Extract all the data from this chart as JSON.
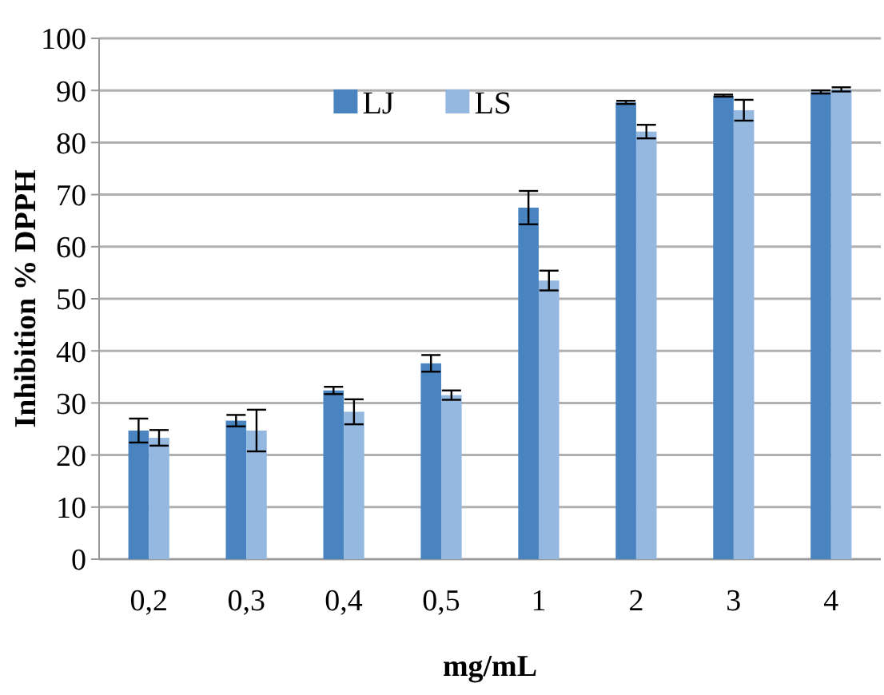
{
  "chart_data": {
    "type": "bar",
    "xlabel": "mg/mL",
    "ylabel": "Inhibition % DPPH",
    "categories": [
      "0,2",
      "0,3",
      "0,4",
      "0,5",
      "1",
      "2",
      "3",
      "4"
    ],
    "series": [
      {
        "name": "LJ",
        "color": "#4a84c0",
        "values": [
          24.7,
          26.6,
          32.4,
          37.6,
          67.5,
          87.7,
          89.0,
          89.7
        ],
        "errors": [
          2.3,
          1.1,
          0.7,
          1.6,
          3.2,
          0.3,
          0.2,
          0.3
        ]
      },
      {
        "name": "LS",
        "color": "#94b8e0",
        "values": [
          23.3,
          24.7,
          28.3,
          31.5,
          53.5,
          82.1,
          86.2,
          90.2
        ],
        "errors": [
          1.5,
          4,
          2.4,
          0.9,
          1.9,
          1.3,
          2,
          0.4
        ]
      }
    ],
    "ylim": [
      0,
      100
    ],
    "yticks": [
      0,
      10,
      20,
      30,
      40,
      50,
      60,
      70,
      80,
      90,
      100
    ],
    "grid": true,
    "legend": "top"
  }
}
